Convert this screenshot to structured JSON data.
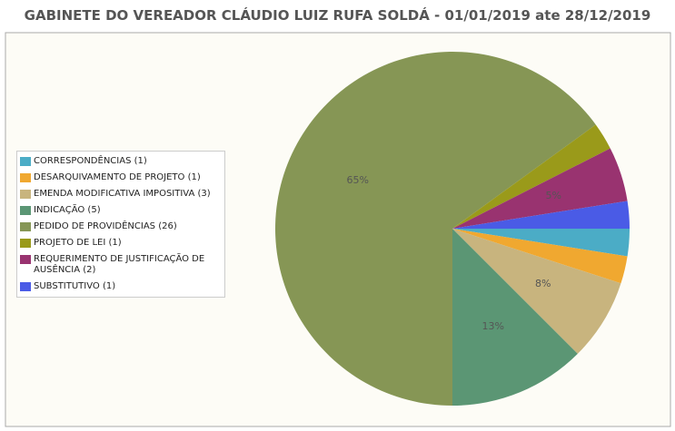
{
  "chart_data": {
    "type": "pie",
    "title": "GABINETE DO VEREADOR CLÁUDIO LUIZ RUFA SOLDÁ - 01/01/2019 ate 28/12/2019",
    "categories": [
      "CORRESPONDÊNCIAS (1)",
      "DESARQUIVAMENTO DE PROJETO (1)",
      "EMENDA MODIFICATIVA IMPOSITIVA (3)",
      "INDICAÇÃO (5)",
      "PEDIDO DE PROVIDÊNCIAS (26)",
      "PROJETO DE LEI (1)",
      "REQUERIMENTO DE JUSTIFICAÇÃO DE AUSÊNCIA (2)",
      "SUBSTITUTIVO (1)"
    ],
    "values": [
      1,
      1,
      3,
      5,
      26,
      1,
      2,
      1
    ],
    "value_labels": [
      null,
      null,
      "8%",
      "13%",
      "65%",
      null,
      "5%",
      null
    ],
    "colors": [
      "#4bacc6",
      "#f0a830",
      "#c8b47e",
      "#5b9674",
      "#869655",
      "#9a9a1a",
      "#993370",
      "#4a5be6"
    ]
  }
}
